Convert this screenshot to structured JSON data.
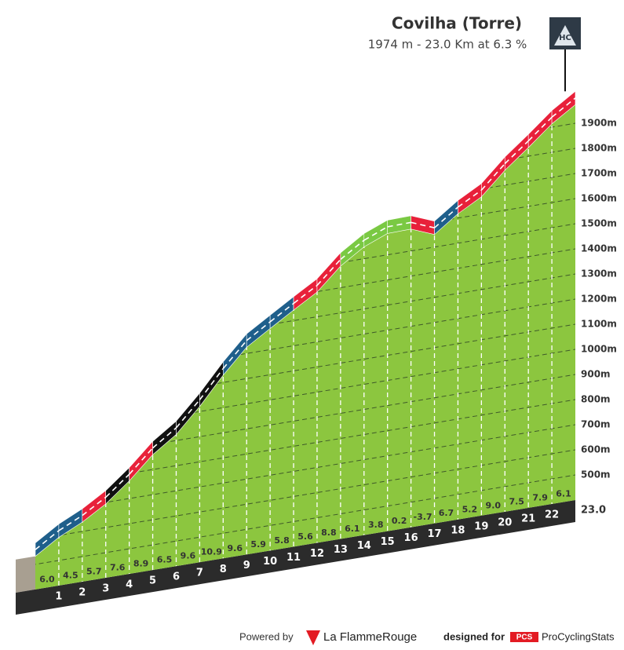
{
  "chart_data": {
    "type": "profile",
    "title": "Covilha (Torre)",
    "subtitle": "1974 m - 23.0 Km at 6.3 %",
    "badge": "HC",
    "summit_elevation": 1974,
    "xlim": [
      0,
      23
    ],
    "xticks": [
      1,
      2,
      3,
      4,
      5,
      6,
      7,
      8,
      9,
      10,
      11,
      12,
      13,
      14,
      15,
      16,
      17,
      18,
      19,
      20,
      21,
      22,
      {
        "value": 23,
        "label": "23.0"
      }
    ],
    "ylim": [
      400,
      2000
    ],
    "yticks": [
      {
        "value": 500,
        "label": "500m"
      },
      {
        "value": 600,
        "label": "600m"
      },
      {
        "value": 700,
        "label": "700m"
      },
      {
        "value": 800,
        "label": "800m"
      },
      {
        "value": 900,
        "label": "900m"
      },
      {
        "value": 1000,
        "label": "1000m"
      },
      {
        "value": 1100,
        "label": "1100m"
      },
      {
        "value": 1200,
        "label": "1200m"
      },
      {
        "value": 1300,
        "label": "1300m"
      },
      {
        "value": 1400,
        "label": "1400m"
      },
      {
        "value": 1500,
        "label": "1500m"
      },
      {
        "value": 1600,
        "label": "1600m"
      },
      {
        "value": 1700,
        "label": "1700m"
      },
      {
        "value": 1800,
        "label": "1800m"
      },
      {
        "value": 1900,
        "label": "1900m"
      }
    ],
    "grid": true,
    "values": [
      6.0,
      4.5,
      5.7,
      7.6,
      8.9,
      6.5,
      9.6,
      10.9,
      9.6,
      5.9,
      5.8,
      5.6,
      8.8,
      6.1,
      3.8,
      0.2,
      -3.7,
      6.7,
      5.2,
      9.0,
      7.5,
      7.9,
      6.1
    ],
    "value_labels": [
      "6.0",
      "4.5",
      "5.7",
      "7.6",
      "8.9",
      "6.5",
      "9.6",
      "10.9",
      "9.6",
      "5.9",
      "5.8",
      "5.6",
      "8.8",
      "6.1",
      "3.8",
      "0.2",
      "-3.7",
      "6.7",
      "5.2",
      "9.0",
      "7.5",
      "7.9",
      "6.1"
    ],
    "segment_colors": [
      "#1f5f8b",
      "#1f5f8b",
      "#e8213a",
      "#111111",
      "#e8213a",
      "#111111",
      "#111111",
      "#111111",
      "#1f5f8b",
      "#1f5f8b",
      "#1f5f8b",
      "#e8213a",
      "#e8213a",
      "#7ac943",
      "#7ac943",
      "#7ac943",
      "#e8213a",
      "#1f5f8b",
      "#e8213a",
      "#e8213a",
      "#e8213a",
      "#e8213a",
      "#e8213a"
    ],
    "surface_color": "#8cc63f"
  },
  "footer": {
    "powered": "Powered by",
    "brand": "La FlammeRouge",
    "designed": "designed for",
    "pcs": "PCS",
    "site": "ProCyclingStats"
  }
}
